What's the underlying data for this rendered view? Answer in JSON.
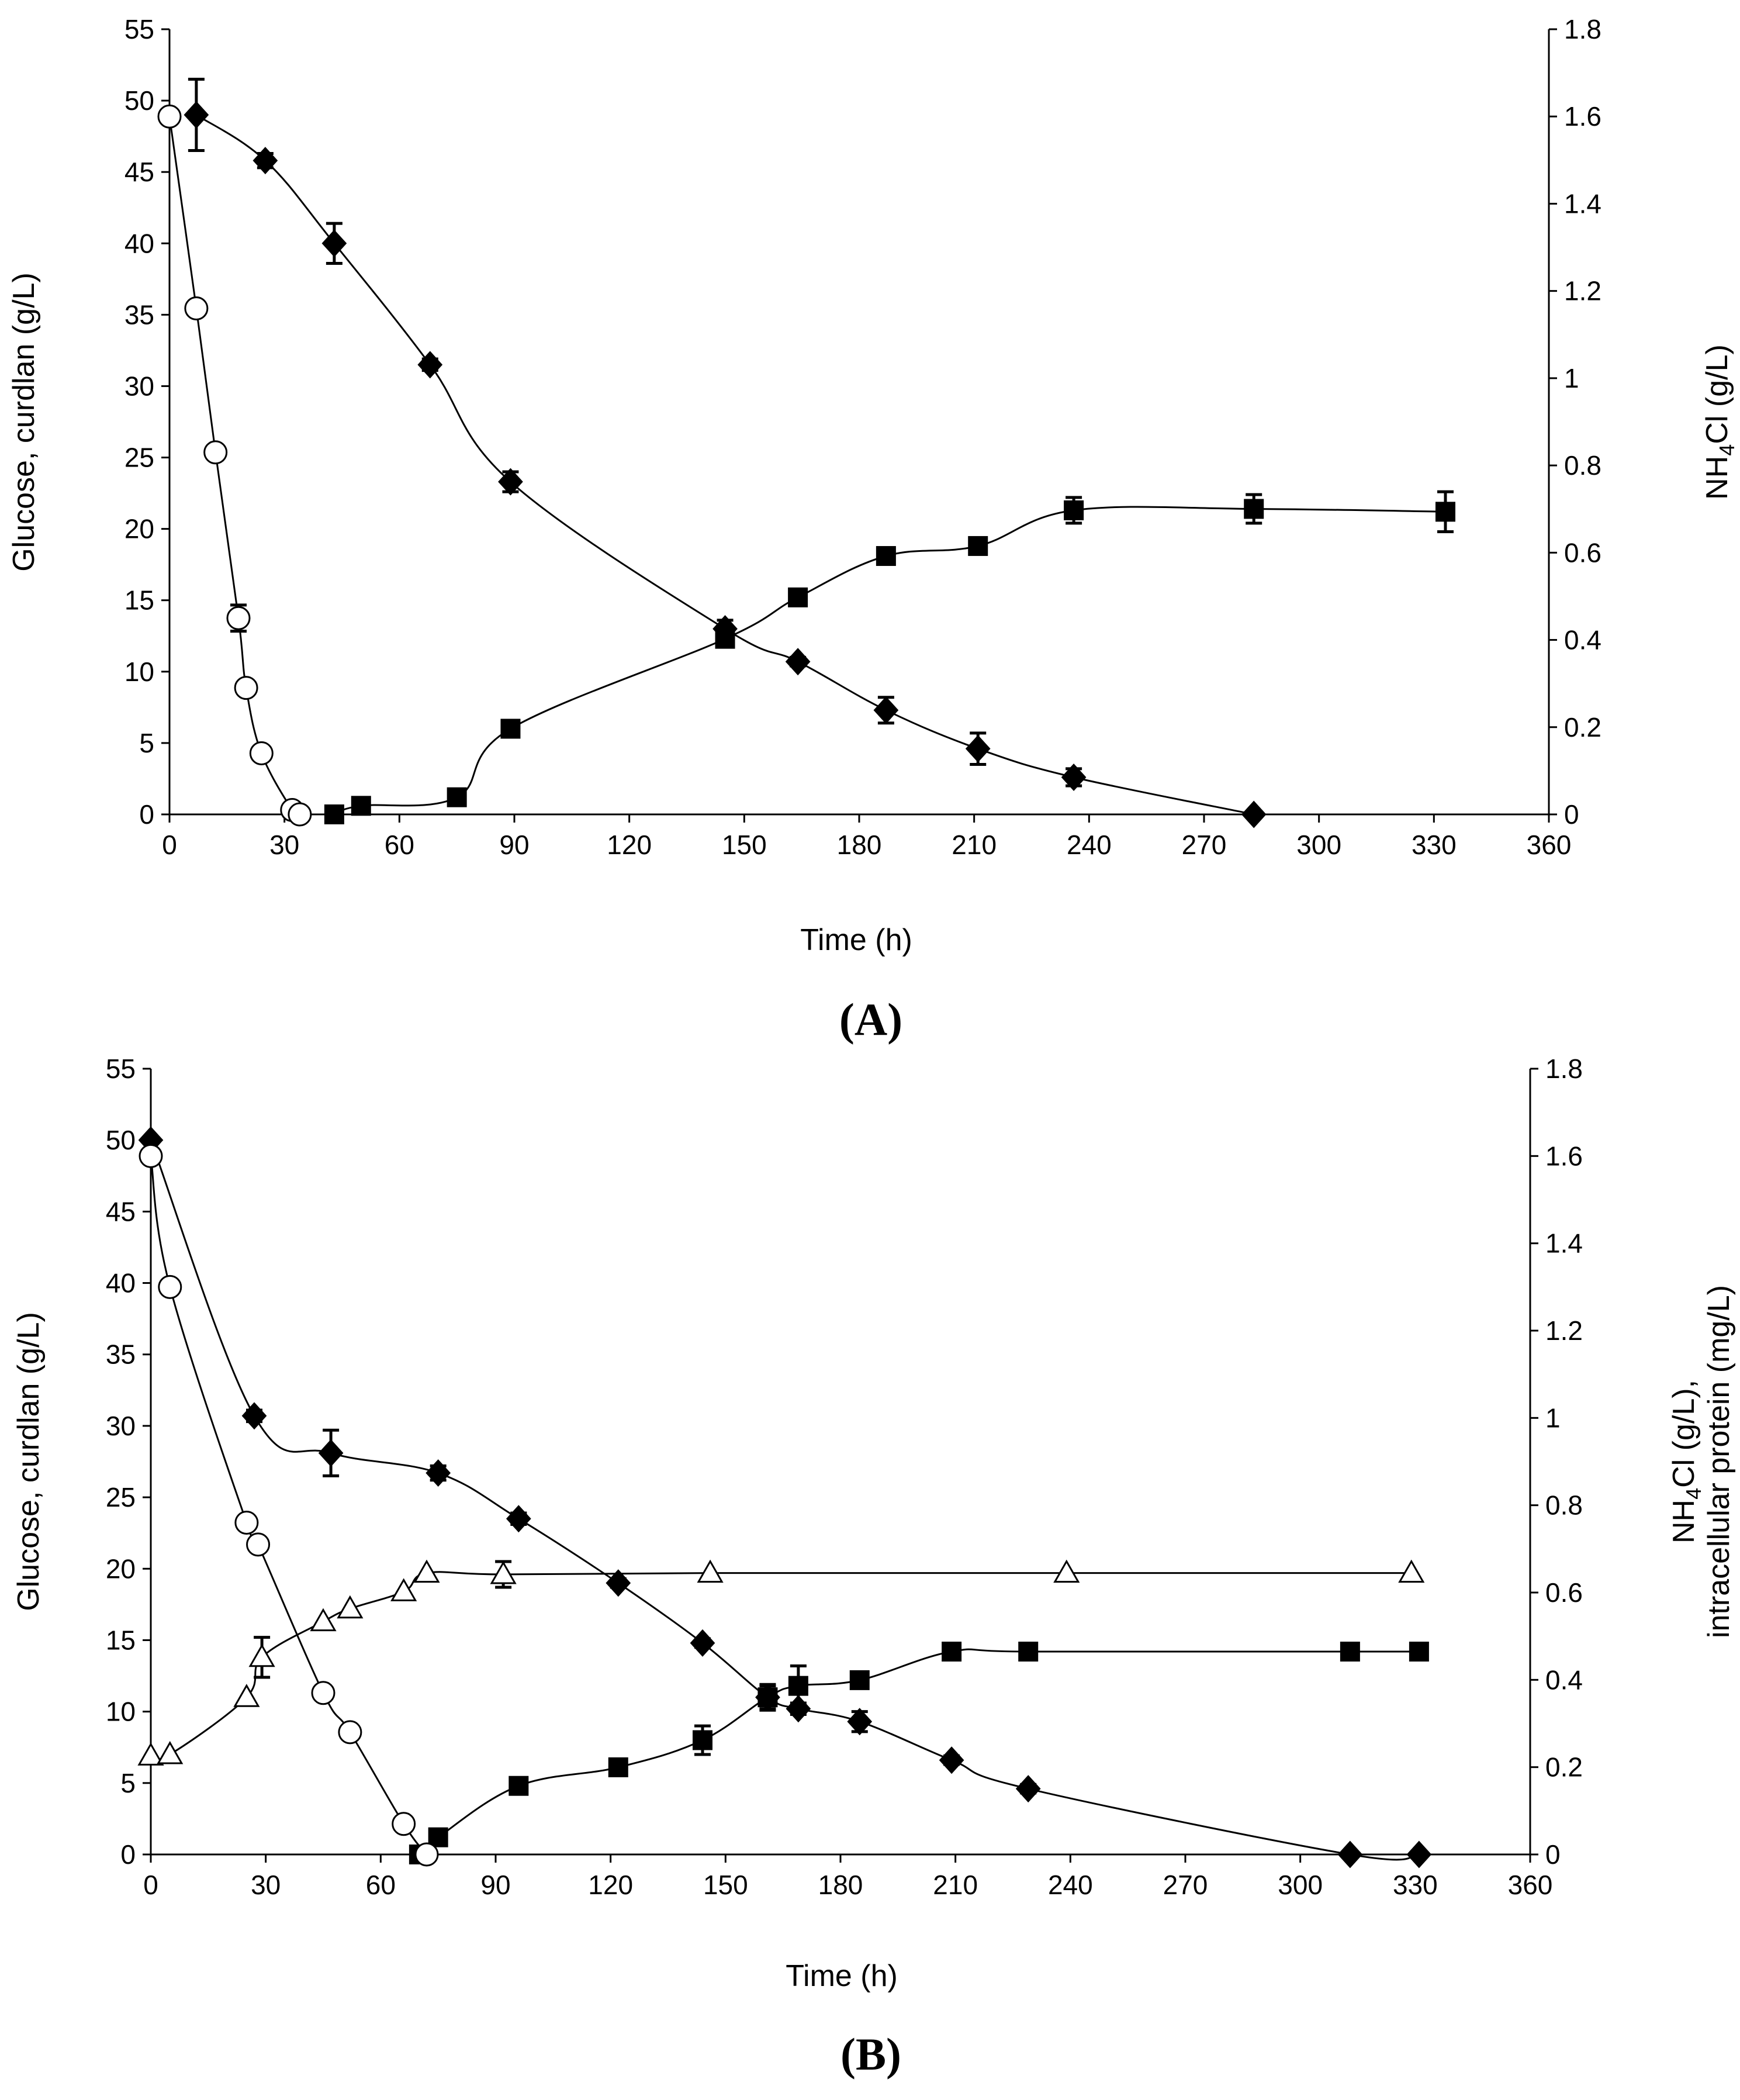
{
  "figure": {
    "panels": [
      "(A)",
      "(B)"
    ]
  },
  "chart_data": [
    {
      "type": "scatter",
      "panel_label": "(A)",
      "xlabel": "Time (h)",
      "ylabel_left": "Glucose, curdlan (g/L)",
      "ylabel_right": [
        "NH",
        "4",
        "Cl (g/L)"
      ],
      "xlim": [
        0,
        360
      ],
      "xticks": [
        "0",
        "30",
        "60",
        "90",
        "120",
        "150",
        "180",
        "210",
        "240",
        "270",
        "300",
        "330",
        "360"
      ],
      "ylim_left": [
        0,
        55
      ],
      "yticks_left": [
        "0",
        "5",
        "10",
        "15",
        "20",
        "25",
        "30",
        "35",
        "40",
        "45",
        "50",
        "55"
      ],
      "ylim_right": [
        0,
        1.8
      ],
      "yticks_right": [
        "0",
        "0.2",
        "0.4",
        "0.6",
        "0.8",
        "1",
        "1.2",
        "1.4",
        "1.6",
        "1.8"
      ],
      "series": [
        {
          "name": "glucose",
          "marker": "diamond-filled",
          "axis": "left",
          "x": [
            7,
            25,
            43,
            68,
            89,
            145,
            164,
            187,
            211,
            236,
            283
          ],
          "y": [
            49,
            45.8,
            40,
            31.5,
            23.3,
            13,
            10.7,
            7.3,
            4.6,
            2.6,
            0
          ],
          "err": [
            2.5,
            0.5,
            1.4,
            0.4,
            0.7,
            0.6,
            0.3,
            0.9,
            1.1,
            0.6,
            0
          ]
        },
        {
          "name": "curdlan",
          "marker": "square-filled",
          "axis": "left",
          "x": [
            43,
            50,
            75,
            89,
            145,
            164,
            187,
            211,
            236,
            283,
            333
          ],
          "y": [
            0,
            0.6,
            1.2,
            6,
            12.3,
            15.2,
            18.1,
            18.8,
            21.3,
            21.4,
            21.2
          ],
          "err": [
            0,
            0.3,
            0.3,
            0.3,
            0.5,
            0.4,
            0.4,
            0.4,
            0.9,
            1.0,
            1.4
          ]
        },
        {
          "name": "NH4Cl",
          "marker": "circle-open",
          "axis": "right",
          "x": [
            0,
            7,
            12,
            18,
            20,
            24,
            32,
            34
          ],
          "y": [
            1.6,
            1.16,
            0.83,
            0.45,
            0.29,
            0.14,
            0.01,
            0
          ],
          "err": [
            0,
            0,
            0,
            0.03,
            0,
            0,
            0,
            0
          ]
        }
      ]
    },
    {
      "type": "scatter",
      "panel_label": "(B)",
      "xlabel": "Time (h)",
      "ylabel_left": "Glucose, curdlan (g/L)",
      "ylabel_right": [
        "NH",
        "4",
        "Cl (g/L),"
      ],
      "ylabel_right2": "intracellular protein (mg/L)",
      "xlim": [
        0,
        360
      ],
      "xticks": [
        "0",
        "30",
        "60",
        "90",
        "120",
        "150",
        "180",
        "210",
        "240",
        "270",
        "300",
        "330",
        "360"
      ],
      "ylim_left": [
        0,
        55
      ],
      "yticks_left": [
        "0",
        "5",
        "10",
        "15",
        "20",
        "25",
        "30",
        "35",
        "40",
        "45",
        "50",
        "55"
      ],
      "ylim_right": [
        0,
        1.8
      ],
      "yticks_right": [
        "0",
        "0.2",
        "0.4",
        "0.6",
        "0.8",
        "1",
        "1.2",
        "1.4",
        "1.6",
        "1.8"
      ],
      "series": [
        {
          "name": "glucose",
          "marker": "diamond-filled",
          "axis": "left",
          "x": [
            0,
            27,
            47,
            75,
            96,
            122,
            144,
            161,
            169,
            185,
            209,
            229,
            313,
            331
          ],
          "y": [
            50,
            30.7,
            28.1,
            26.7,
            23.5,
            19,
            14.8,
            11,
            10.2,
            9.3,
            6.6,
            4.6,
            0,
            0
          ],
          "err": [
            0,
            0.4,
            1.6,
            0.5,
            0.4,
            0.3,
            0.3,
            0.9,
            0.4,
            0.7,
            0.3,
            0.3,
            0,
            0
          ]
        },
        {
          "name": "curdlan",
          "marker": "square-filled",
          "axis": "left",
          "x": [
            70,
            75,
            96,
            122,
            144,
            161,
            169,
            185,
            209,
            229,
            313,
            331
          ],
          "y": [
            0,
            1.2,
            4.8,
            6.1,
            8,
            11,
            11.8,
            12.2,
            14.2,
            14.2,
            14.2,
            14.2
          ],
          "err": [
            0,
            0.3,
            0.3,
            0.4,
            1.0,
            0.8,
            1.4,
            0.4,
            0.4,
            0.3,
            0.3,
            0.3
          ]
        },
        {
          "name": "NH4Cl",
          "marker": "circle-open",
          "axis": "right",
          "x": [
            0,
            5,
            25,
            28,
            45,
            52,
            66,
            72
          ],
          "y": [
            1.6,
            1.3,
            0.76,
            0.71,
            0.37,
            0.28,
            0.07,
            0
          ],
          "err": [
            0,
            0,
            0,
            0,
            0,
            0,
            0,
            0
          ]
        },
        {
          "name": "intracellular protein",
          "marker": "triangle-open",
          "axis": "left",
          "x": [
            0,
            5,
            25,
            29,
            45,
            52,
            66,
            72,
            92,
            146,
            239,
            329
          ],
          "y": [
            6.9,
            7,
            11,
            13.8,
            16.3,
            17.2,
            18.4,
            19.7,
            19.6,
            19.7,
            19.7,
            19.7
          ],
          "err": [
            0,
            0,
            0,
            1.4,
            0,
            0,
            0,
            0,
            0.9,
            0,
            0,
            0
          ]
        }
      ]
    }
  ]
}
